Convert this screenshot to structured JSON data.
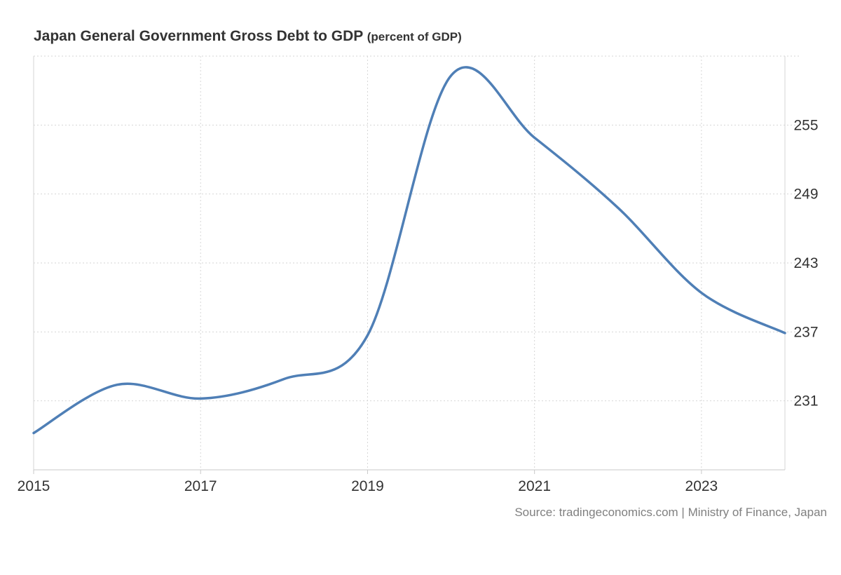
{
  "chart_data": {
    "type": "line",
    "title": "Japan General Government Gross Debt to GDP",
    "subtitle": "(percent of GDP)",
    "xlabel": "",
    "ylabel": "",
    "x": [
      2015,
      2016,
      2017,
      2018,
      2019,
      2020,
      2021,
      2022,
      2023,
      2024
    ],
    "series": [
      {
        "values": [
          228.2,
          232.4,
          231.2,
          232.9,
          236.7,
          259.3,
          253.9,
          247.8,
          240.4,
          236.9
        ]
      }
    ],
    "x_ticks": [
      "2015",
      "2017",
      "2019",
      "2021",
      "2023"
    ],
    "y_ticks": [
      "231",
      "237",
      "243",
      "249",
      "255"
    ],
    "xlim": [
      2015,
      2024
    ],
    "ylim": [
      225,
      261
    ],
    "grid": true,
    "y_axis_side": "right",
    "line_color": "#4f7fb6",
    "grid_color": "#d6d6d6"
  },
  "source": "Source: tradingeconomics.com | Ministry of Finance, Japan"
}
